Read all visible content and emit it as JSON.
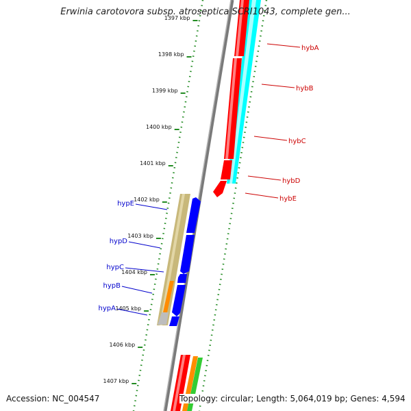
{
  "title": "Erwinia carotovora subsp. atroseptica SCRI1043, complete gen...",
  "footer": {
    "accession": "Accession: NC_004547",
    "summary": "Topology: circular; Length: 5,064,019 bp; Genes: 4,594"
  },
  "ruler": {
    "ticks": [
      {
        "label": "1397 kbp"
      },
      {
        "label": "1398 kbp"
      },
      {
        "label": "1399 kbp"
      },
      {
        "label": "1400 kbp"
      },
      {
        "label": "1401 kbp"
      },
      {
        "label": "1402 kbp"
      },
      {
        "label": "1403 kbp"
      },
      {
        "label": "1404 kbp"
      },
      {
        "label": "1405 kbp"
      },
      {
        "label": "1406 kbp"
      },
      {
        "label": "1407 kbp"
      }
    ]
  },
  "genes_forward": [
    {
      "label": "hybA"
    },
    {
      "label": "hybB"
    },
    {
      "label": "hybC"
    },
    {
      "label": "hybD"
    },
    {
      "label": "hybE"
    }
  ],
  "genes_reverse": [
    {
      "label": "hypE"
    },
    {
      "label": "hypD"
    },
    {
      "label": "hypC"
    },
    {
      "label": "hypB"
    },
    {
      "label": "hypA"
    }
  ],
  "colors": {
    "forward_cds": "#ff0000",
    "reverse_cds": "#0000ff",
    "forward_label": "#cc0000",
    "reverse_label": "#0000cc",
    "cyan_track": "#00ffff",
    "olive_track": "#c8b87a",
    "orange_track": "#ff8c00",
    "green_track": "#33cc33",
    "backbone": "#888888",
    "gc_dots": "#228b22"
  }
}
